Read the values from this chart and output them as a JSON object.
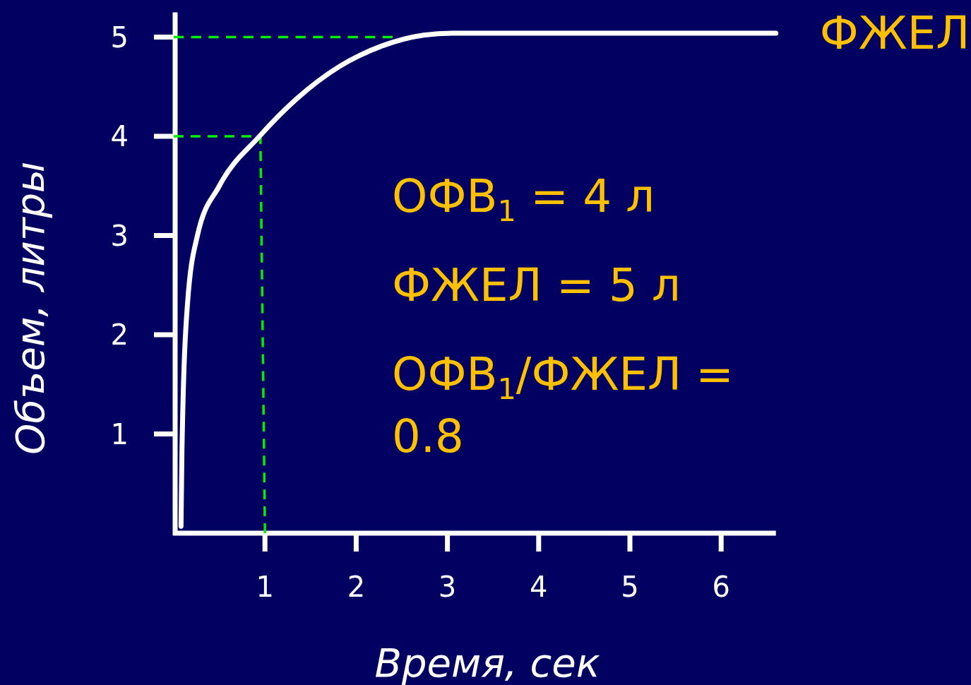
{
  "chart_data": {
    "type": "line",
    "xlabel": "Время, сек",
    "ylabel": "Объем, литры",
    "xlim": [
      0,
      6.6
    ],
    "ylim": [
      0,
      5.25
    ],
    "xticks": [
      1,
      2,
      3,
      4,
      5,
      6
    ],
    "yticks": [
      1,
      2,
      3,
      4,
      5
    ],
    "grid": false,
    "series": [
      {
        "name": "ФЖЕЛ",
        "color": "#ffffff",
        "line_style": "solid",
        "x": [
          0.08,
          0.09,
          0.15,
          0.26,
          0.5,
          0.94,
          1.35,
          1.81,
          2.28,
          2.74,
          3.05,
          6.6
        ],
        "values": [
          0.07,
          0.82,
          2.3,
          3.0,
          3.5,
          4.0,
          4.38,
          4.7,
          4.91,
          5.02,
          5.04,
          5.04
        ]
      },
      {
        "color": "#00ee00",
        "line_style": "dashed",
        "x": [
          0,
          0.95,
          1.0
        ],
        "values": [
          4,
          4,
          0
        ]
      },
      {
        "color": "#00ee00",
        "line_style": "dashed",
        "x": [
          0,
          2.4
        ],
        "values": [
          5,
          5
        ]
      }
    ],
    "annotations": [
      "ОФВ$_{1}$ = 4 л",
      "ФЖЕЛ  = 5 л",
      "ОФВ$_{1}$/ФЖЕЛ = 0.8"
    ]
  }
}
